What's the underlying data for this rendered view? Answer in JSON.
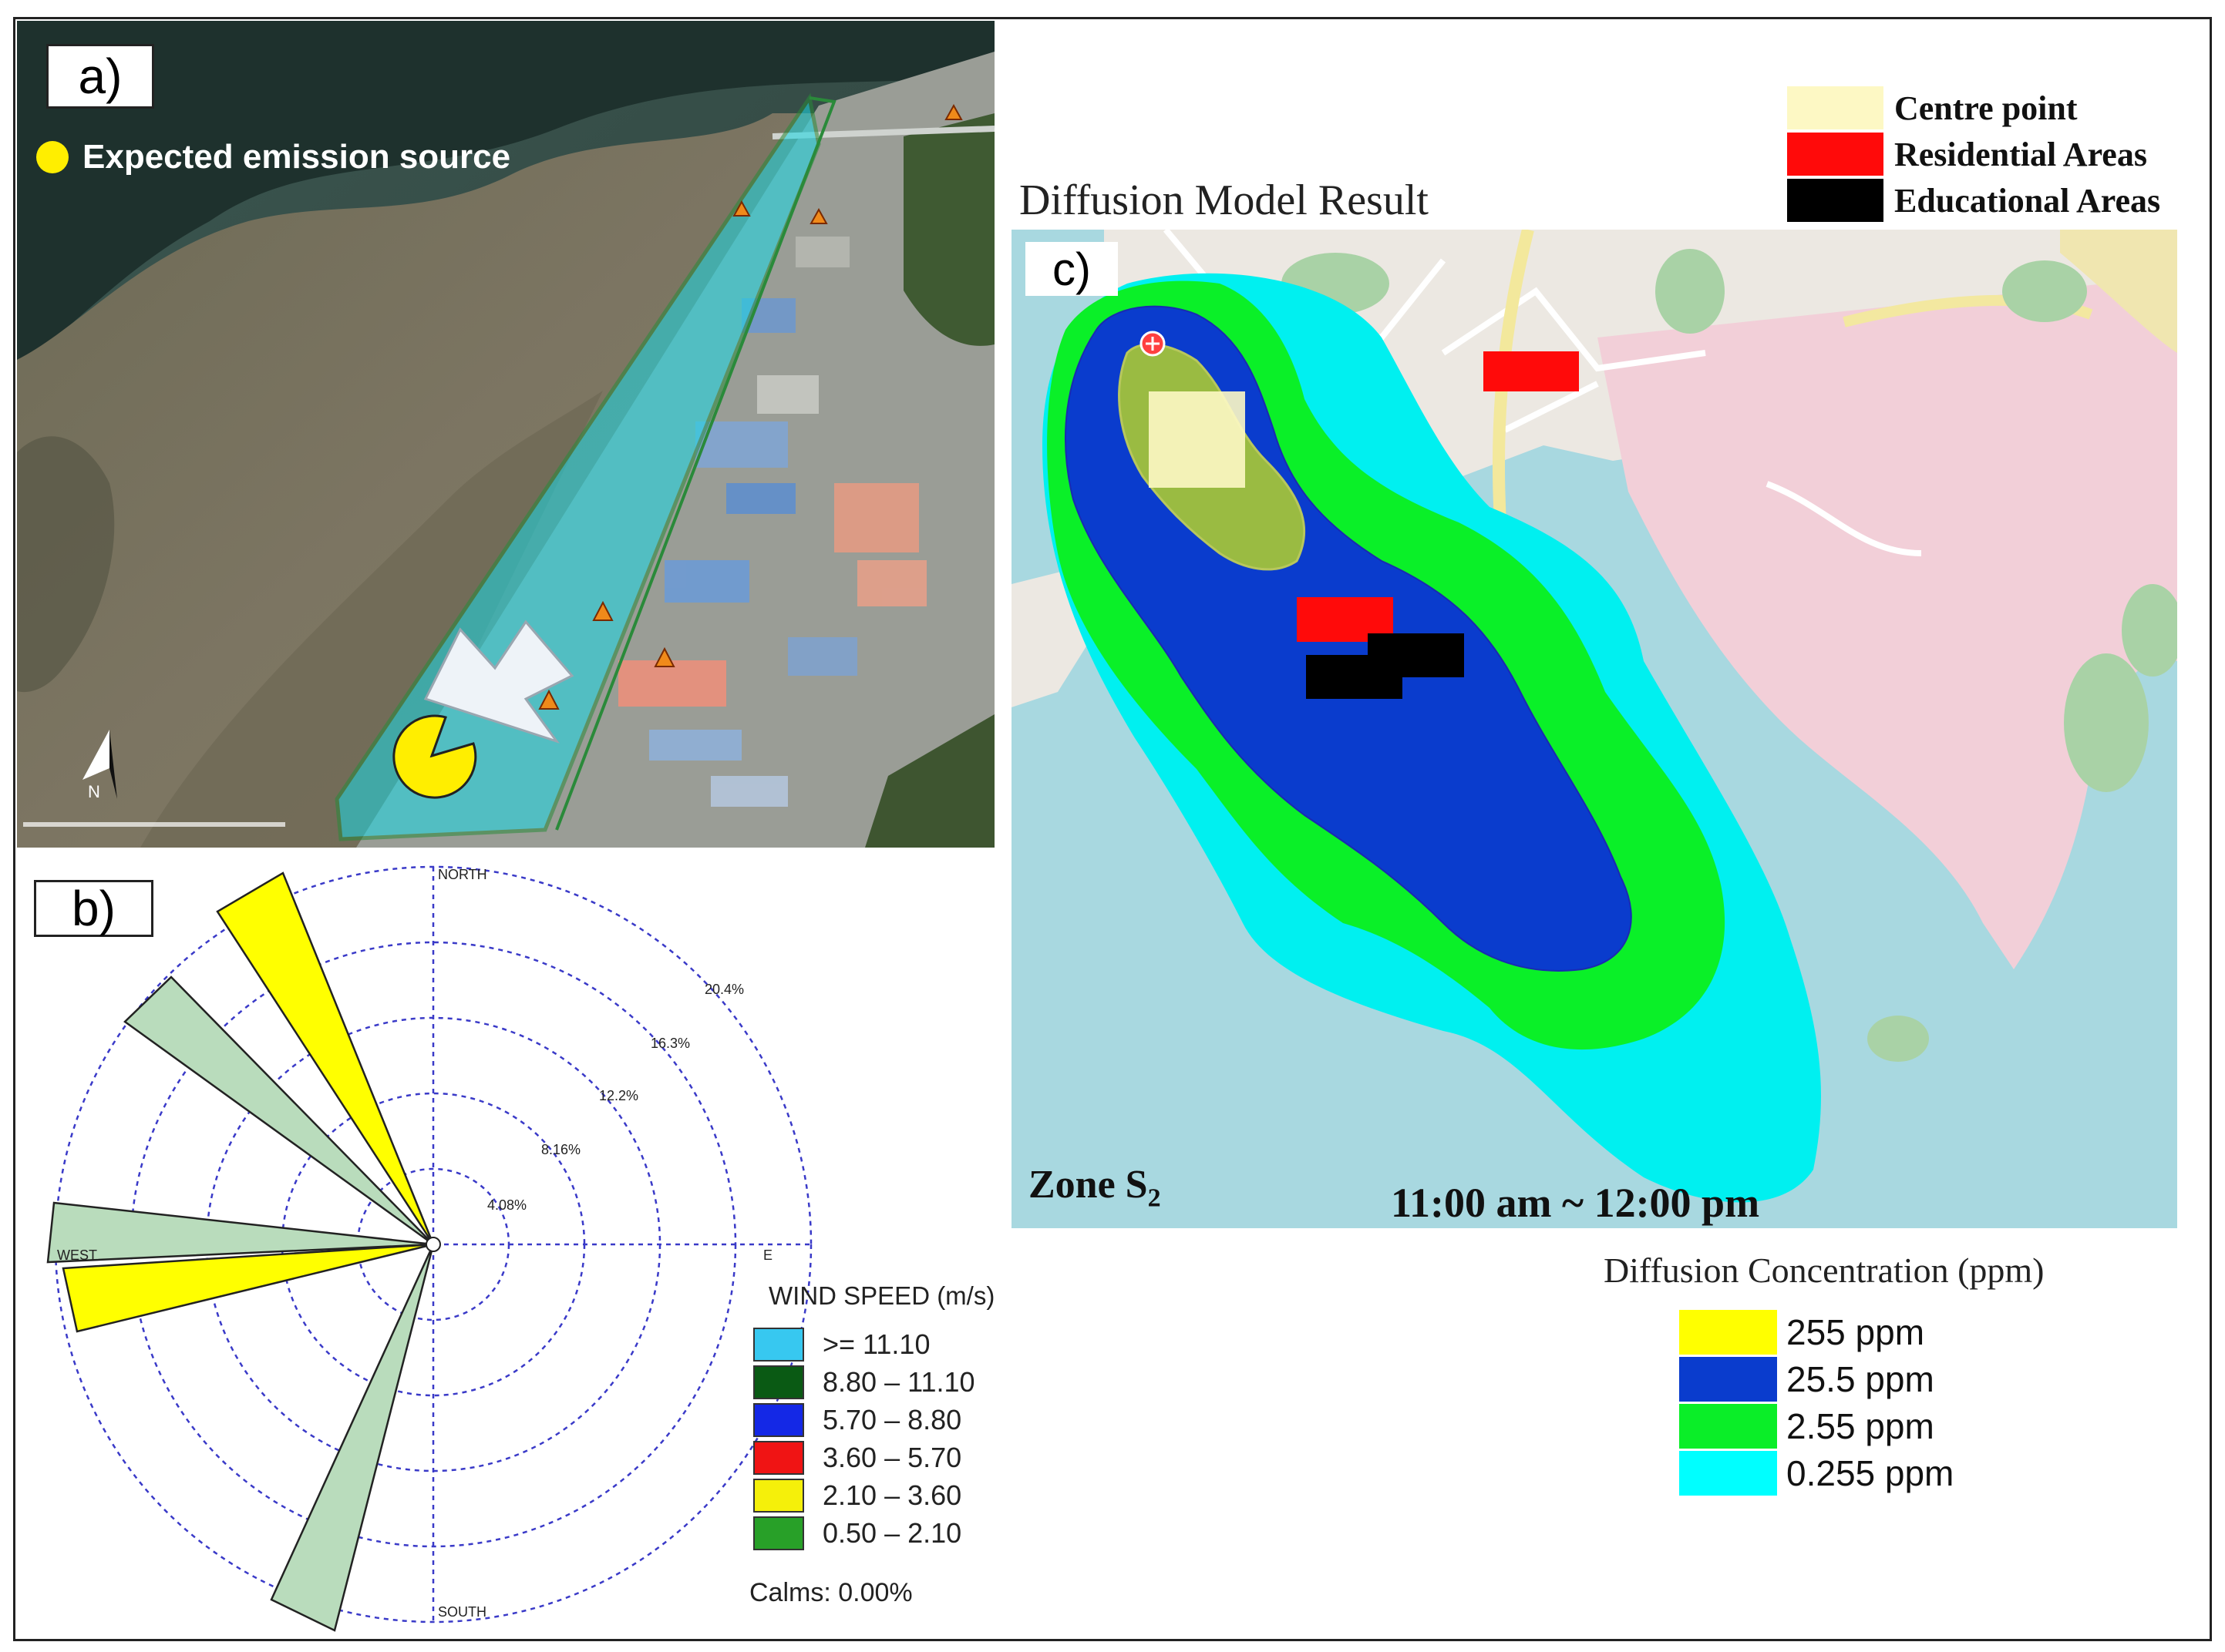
{
  "panel_a": {
    "label": "a)",
    "legend_text": "Expected emission source",
    "colors": {
      "emission": "#ffee00",
      "zone": "#19d9e6",
      "arrow": "#eef3f8"
    }
  },
  "panel_b": {
    "label": "b)",
    "directions": {
      "north": "NORTH",
      "south": "SOUTH",
      "west": "WEST",
      "east": "E"
    },
    "rings": [
      "4.08%",
      "8.16%",
      "12.2%",
      "16.3%",
      "20.4%"
    ],
    "legend_title": "WIND SPEED (m/s)",
    "legend": [
      {
        "label": ">= 11.10",
        "color": "#37c8f0"
      },
      {
        "label": "8.80 – 11.10",
        "color": "#0a5a14"
      },
      {
        "label": "5.70 – 8.80",
        "color": "#1428e6"
      },
      {
        "label": "3.60 – 5.70",
        "color": "#f01414"
      },
      {
        "label": "2.10 – 3.60",
        "color": "#f5f00a"
      },
      {
        "label": "0.50 – 2.10",
        "color": "#28a028"
      }
    ],
    "calms": "Calms: 0.00%"
  },
  "panel_c": {
    "label": "c)",
    "title": "Diffusion Model Result",
    "zone_label": "Zone S",
    "zone_sub": "2",
    "time": "11:00 am ~ 12:00 pm",
    "area_legend": [
      {
        "label": "Centre point",
        "color": "#fdf8c4"
      },
      {
        "label": "Residential Areas",
        "color": "#ff0a0a"
      },
      {
        "label": "Educational Areas",
        "color": "#000000"
      }
    ],
    "conc_title": "Diffusion Concentration (ppm)",
    "conc_legend": [
      {
        "label": "255 ppm",
        "color": "#ffff00"
      },
      {
        "label": "25.5 ppm",
        "color": "#0a3ccd"
      },
      {
        "label": "2.55 ppm",
        "color": "#0aee28"
      },
      {
        "label": "0.255 ppm",
        "color": "#00ffff"
      }
    ]
  }
}
